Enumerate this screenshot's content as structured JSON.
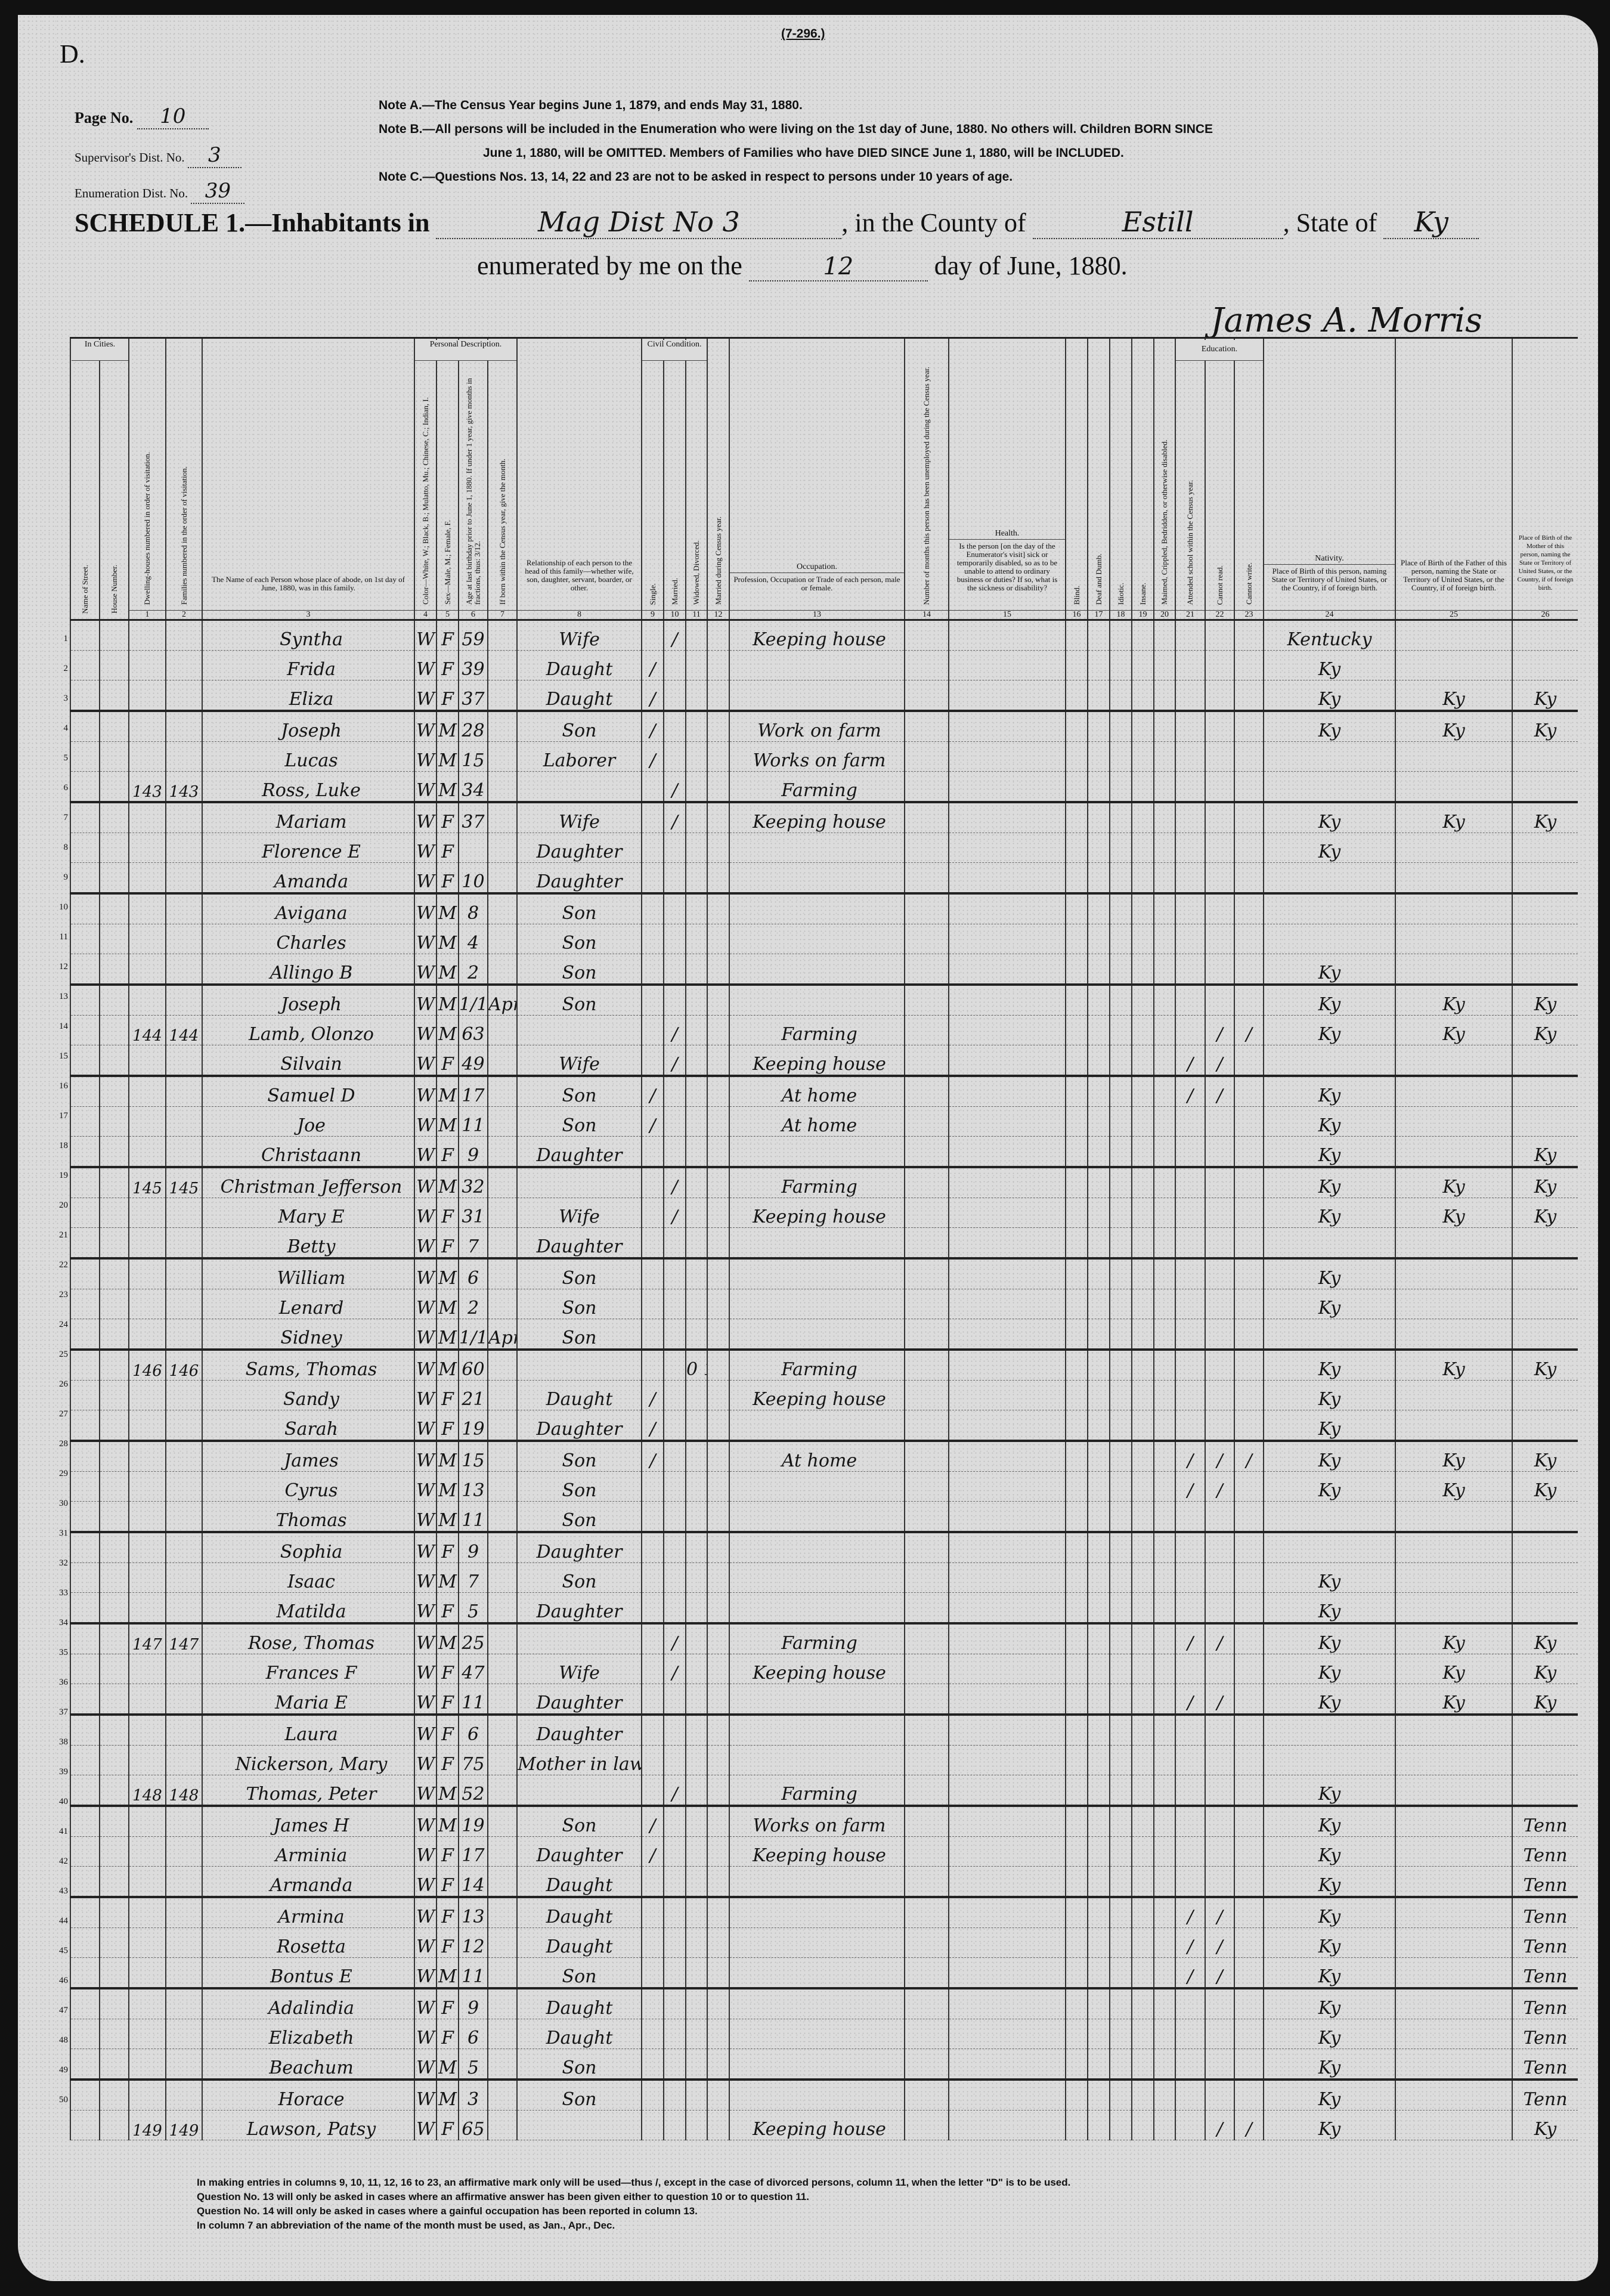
{
  "form": {
    "letter": "D.",
    "form_number": "(7-296.)",
    "page_no_label": "Page No.",
    "page_no": "10",
    "supervisor_label": "Supervisor's Dist. No.",
    "supervisor_no": "3",
    "enumeration_label": "Enumeration Dist. No.",
    "enumeration_no": "39",
    "note_a": "Note A.—The Census Year begins June 1, 1879, and ends May 31, 1880.",
    "note_b1": "Note B.—All persons will be included in the Enumeration who were living on the 1st day of June, 1880. No others will. Children BORN SINCE",
    "note_b2": "June 1, 1880, will be OMITTED. Members of Families who have DIED SINCE June 1, 1880, will be INCLUDED.",
    "note_c": "Note C.—Questions Nos. 13, 14, 22 and 23 are not to be asked in respect to persons under 10 years of age.",
    "schedule_label": "SCHEDULE 1.—Inhabitants in",
    "inhabitants_in": "Mag Dist No 3",
    "county_label": ", in the County of",
    "county": "Estill",
    "state_label": ", State of",
    "state": "Ky",
    "enumerated_label": "enumerated by me on the",
    "day": "12",
    "day_label": "day of June, 1880.",
    "enumerator": "James A. Morris"
  },
  "columns": {
    "in_cities": "In Cities.",
    "street": "Name of Street.",
    "house": "House Number.",
    "c1": "Dwelling-houses numbered in order of visitation.",
    "c2": "Families numbered in the order of visitation.",
    "c3": "The Name of each Person whose place of abode, on 1st day of June, 1880, was in this family.",
    "personal": "Personal Description.",
    "c4": "Color—White, W.; Black, B.; Mulatto, Mu.; Chinese, C.; Indian, I.",
    "c5": "Sex—Male, M.; Female, F.",
    "c6": "Age at last birthday prior to June 1, 1880. If under 1 year, give months in fractions, thus: 3/12.",
    "c7": "If born within the Census year, give the month.",
    "c8": "Relationship of each person to the head of this family—whether wife, son, daughter, servant, boarder, or other.",
    "civil": "Civil Condition.",
    "c9": "Single.",
    "c10": "Married.",
    "c11": "Widowed, Divorced.",
    "c12": "Married during Census year.",
    "occupation": "Occupation.",
    "c13": "Profession, Occupation or Trade of each person, male or female.",
    "c14": "Number of months this person has been unemployed during the Census year.",
    "health": "Health.",
    "c15": "Is the person [on the day of the Enumerator's visit] sick or temporarily disabled, so as to be unable to attend to ordinary business or duties? If so, what is the sickness or disability?",
    "c16": "Blind.",
    "c17": "Deaf and Dumb.",
    "c18": "Idiotic.",
    "c19": "Insane.",
    "c20": "Maimed, Crippled, Bedridden, or otherwise disabled.",
    "education": "Education.",
    "c21": "Attended school within the Census year.",
    "c22": "Cannot read.",
    "c23": "Cannot write.",
    "nativity": "Nativity.",
    "c24": "Place of Birth of this person, naming State or Territory of United States, or the Country, if of foreign birth.",
    "c25": "Place of Birth of the Father of this person, naming the State or Territory of United States, or the Country, if of foreign birth.",
    "c26": "Place of Birth of the Mother of this person, naming the State or Territory of United States, or the Country, if of foreign birth."
  },
  "rows": [
    {
      "name": "Syntha",
      "color": "W",
      "sex": "F",
      "age": "59",
      "relation": "Wife",
      "married": "/",
      "occupation": "Keeping house",
      "birthplace": "Kentucky"
    },
    {
      "name": "Frida",
      "color": "W",
      "sex": "F",
      "age": "39",
      "relation": "Daught",
      "single": "/",
      "birthplace": "Ky"
    },
    {
      "name": "Eliza",
      "color": "W",
      "sex": "F",
      "age": "37",
      "relation": "Daught",
      "single": "/",
      "birthplace": "Ky",
      "father_birthplace": "Ky",
      "mother_birthplace": "Ky"
    },
    {
      "name": "Joseph",
      "color": "W",
      "sex": "M",
      "age": "28",
      "relation": "Son",
      "single": "/",
      "occupation": "Work on farm",
      "birthplace": "Ky",
      "father_birthplace": "Ky",
      "mother_birthplace": "Ky"
    },
    {
      "name": "Lucas",
      "color": "W",
      "sex": "M",
      "age": "15",
      "relation": "Laborer",
      "single": "/",
      "occupation": "Works on farm"
    },
    {
      "dwelling": "143",
      "family": "143",
      "name": "Ross, Luke",
      "color": "W",
      "sex": "M",
      "age": "34",
      "married": "/",
      "occupation": "Farming"
    },
    {
      "name": "Mariam",
      "color": "W",
      "sex": "F",
      "age": "37",
      "relation": "Wife",
      "married": "/",
      "occupation": "Keeping house",
      "birthplace": "Ky",
      "father_birthplace": "Ky",
      "mother_birthplace": "Ky"
    },
    {
      "name": "Florence E",
      "color": "W",
      "sex": "F",
      "relation": "Daughter",
      "birthplace": "Ky"
    },
    {
      "name": "Amanda",
      "color": "W",
      "sex": "F",
      "age": "10",
      "relation": "Daughter"
    },
    {
      "name": "Avigana",
      "color": "W",
      "sex": "M",
      "age": "8",
      "month": "",
      "relation": "Son"
    },
    {
      "name": "Charles",
      "color": "W",
      "sex": "M",
      "age": "4",
      "relation": "Son"
    },
    {
      "name": "Allingo B",
      "color": "W",
      "sex": "M",
      "age": "2",
      "relation": "Son",
      "birthplace": "Ky"
    },
    {
      "name": "Joseph",
      "color": "W",
      "sex": "M",
      "age": "1/12",
      "month": "Apr",
      "relation": "Son",
      "birthplace": "Ky",
      "father_birthplace": "Ky",
      "mother_birthplace": "Ky"
    },
    {
      "dwelling": "144",
      "family": "144",
      "name": "Lamb, Olonzo",
      "color": "W",
      "sex": "M",
      "age": "63",
      "married": "/",
      "occupation": "Farming",
      "cannot_read": "/",
      "cannot_write": "/",
      "birthplace": "Ky",
      "father_birthplace": "Ky",
      "mother_birthplace": "Ky"
    },
    {
      "name": "Silvain",
      "color": "W",
      "sex": "F",
      "age": "49",
      "relation": "Wife",
      "married": "/",
      "occupation": "Keeping house",
      "school": "/",
      "cannot_read": "/"
    },
    {
      "name": "Samuel D",
      "color": "W",
      "sex": "M",
      "age": "17",
      "relation": "Son",
      "single": "/",
      "occupation": "At home",
      "school": "/",
      "cannot_read": "/",
      "birthplace": "Ky"
    },
    {
      "name": "Joe",
      "color": "W",
      "sex": "M",
      "age": "11",
      "relation": "Son",
      "single": "/",
      "occupation": "At home",
      "birthplace": "Ky"
    },
    {
      "name": "Christaann",
      "color": "W",
      "sex": "F",
      "age": "9",
      "relation": "Daughter",
      "birthplace": "Ky",
      "mother_birthplace": "Ky"
    },
    {
      "dwelling": "145",
      "family": "145",
      "name": "Christman Jefferson",
      "color": "W",
      "sex": "M",
      "age": "32",
      "married": "/",
      "occupation": "Farming",
      "birthplace": "Ky",
      "father_birthplace": "Ky",
      "mother_birthplace": "Ky"
    },
    {
      "name": "Mary E",
      "color": "W",
      "sex": "F",
      "age": "31",
      "relation": "Wife",
      "married": "/",
      "occupation": "Keeping house",
      "birthplace": "Ky",
      "father_birthplace": "Ky",
      "mother_birthplace": "Ky"
    },
    {
      "name": "Betty",
      "color": "W",
      "sex": "F",
      "age": "7",
      "relation": "Daughter"
    },
    {
      "name": "William",
      "color": "W",
      "sex": "M",
      "age": "6",
      "relation": "Son",
      "birthplace": "Ky"
    },
    {
      "name": "Lenard",
      "color": "W",
      "sex": "M",
      "age": "2",
      "relation": "Son",
      "birthplace": "Ky"
    },
    {
      "name": "Sidney",
      "color": "W",
      "sex": "M",
      "age": "1/12",
      "month": "Apr",
      "relation": "Son"
    },
    {
      "dwelling": "146",
      "family": "146",
      "name": "Sams, Thomas",
      "color": "W",
      "sex": "M",
      "age": "60",
      "widowed": "0 1",
      "occupation": "Farming",
      "birthplace": "Ky",
      "father_birthplace": "Ky",
      "mother_birthplace": "Ky"
    },
    {
      "name": "Sandy",
      "color": "W",
      "sex": "F",
      "age": "21",
      "relation": "Daught",
      "single": "/",
      "occupation": "Keeping house",
      "birthplace": "Ky"
    },
    {
      "name": "Sarah",
      "color": "W",
      "sex": "F",
      "age": "19",
      "relation": "Daughter",
      "single": "/",
      "birthplace": "Ky"
    },
    {
      "name": "James",
      "color": "W",
      "sex": "M",
      "age": "15",
      "relation": "Son",
      "single": "/",
      "occupation": "At home",
      "school": "/",
      "cannot_read": "/",
      "cannot_write": "/",
      "birthplace": "Ky",
      "father_birthplace": "Ky",
      "mother_birthplace": "Ky"
    },
    {
      "name": "Cyrus",
      "color": "W",
      "sex": "M",
      "age": "13",
      "relation": "Son",
      "school": "/",
      "cannot_read": "/",
      "birthplace": "Ky",
      "father_birthplace": "Ky",
      "mother_birthplace": "Ky"
    },
    {
      "name": "Thomas",
      "color": "W",
      "sex": "M",
      "age": "11",
      "relation": "Son"
    },
    {
      "name": "Sophia",
      "color": "W",
      "sex": "F",
      "age": "9",
      "relation": "Daughter"
    },
    {
      "name": "Isaac",
      "color": "W",
      "sex": "M",
      "age": "7",
      "relation": "Son",
      "birthplace": "Ky"
    },
    {
      "name": "Matilda",
      "color": "W",
      "sex": "F",
      "age": "5",
      "relation": "Daughter",
      "birthplace": "Ky"
    },
    {
      "dwelling": "147",
      "family": "147",
      "name": "Rose, Thomas",
      "color": "W",
      "sex": "M",
      "age": "25",
      "married": "/",
      "occupation": "Farming",
      "school": "/",
      "cannot_read": "/",
      "birthplace": "Ky",
      "father_birthplace": "Ky",
      "mother_birthplace": "Ky"
    },
    {
      "name": "Frances F",
      "color": "W",
      "sex": "F",
      "age": "47",
      "relation": "Wife",
      "married": "/",
      "occupation": "Keeping house",
      "birthplace": "Ky",
      "father_birthplace": "Ky",
      "mother_birthplace": "Ky"
    },
    {
      "name": "Maria E",
      "color": "W",
      "sex": "F",
      "age": "11",
      "relation": "Daughter",
      "school": "/",
      "cannot_read": "/",
      "birthplace": "Ky",
      "father_birthplace": "Ky",
      "mother_birthplace": "Ky"
    },
    {
      "name": "Laura",
      "color": "W",
      "sex": "F",
      "age": "6",
      "relation": "Daughter"
    },
    {
      "name": "Nickerson, Mary",
      "color": "W",
      "sex": "F",
      "age": "75",
      "relation": "Mother in law"
    },
    {
      "dwelling": "148",
      "family": "148",
      "name": "Thomas, Peter",
      "color": "W",
      "sex": "M",
      "age": "52",
      "married": "/",
      "occupation": "Farming",
      "birthplace": "Ky"
    },
    {
      "name": "James H",
      "color": "W",
      "sex": "M",
      "age": "19",
      "relation": "Son",
      "single": "/",
      "occupation": "Works on farm",
      "birthplace": "Ky",
      "mother_birthplace": "Tenn"
    },
    {
      "name": "Arminia",
      "color": "W",
      "sex": "F",
      "age": "17",
      "relation": "Daughter",
      "single": "/",
      "occupation": "Keeping house",
      "birthplace": "Ky",
      "mother_birthplace": "Tenn"
    },
    {
      "name": "Armanda",
      "color": "W",
      "sex": "F",
      "age": "14",
      "relation": "Daught",
      "birthplace": "Ky",
      "mother_birthplace": "Tenn"
    },
    {
      "name": "Armina",
      "color": "W",
      "sex": "F",
      "age": "13",
      "relation": "Daught",
      "school": "/",
      "cannot_read": "/",
      "birthplace": "Ky",
      "mother_birthplace": "Tenn"
    },
    {
      "name": "Rosetta",
      "color": "W",
      "sex": "F",
      "age": "12",
      "relation": "Daught",
      "school": "/",
      "cannot_read": "/",
      "birthplace": "Ky",
      "mother_birthplace": "Tenn"
    },
    {
      "name": "Bontus E",
      "color": "W",
      "sex": "M",
      "age": "11",
      "relation": "Son",
      "school": "/",
      "cannot_read": "/",
      "birthplace": "Ky",
      "mother_birthplace": "Tenn"
    },
    {
      "name": "Adalindia",
      "color": "W",
      "sex": "F",
      "age": "9",
      "relation": "Daught",
      "birthplace": "Ky",
      "mother_birthplace": "Tenn"
    },
    {
      "name": "Elizabeth",
      "color": "W",
      "sex": "F",
      "age": "6",
      "relation": "Daught",
      "birthplace": "Ky",
      "mother_birthplace": "Tenn"
    },
    {
      "name": "Beachum",
      "color": "W",
      "sex": "M",
      "age": "5",
      "relation": "Son",
      "birthplace": "Ky",
      "mother_birthplace": "Tenn"
    },
    {
      "name": "Horace",
      "color": "W",
      "sex": "M",
      "age": "3",
      "relation": "Son",
      "birthplace": "Ky",
      "mother_birthplace": "Tenn"
    },
    {
      "dwelling": "149",
      "family": "149",
      "name": "Lawson, Patsy",
      "color": "W",
      "sex": "F",
      "age": "65",
      "occupation": "Keeping house",
      "cannot_read": "/",
      "cannot_write": "/",
      "birthplace": "Ky",
      "mother_birthplace": "Ky"
    }
  ],
  "footer_notes": [
    "In making entries in columns 9, 10, 11, 12, 16 to 23, an affirmative mark only will be used—thus /, except in the case of divorced persons, column 11, when the letter \"D\" is to be used.",
    "Question No. 13 will only be asked in cases where an affirmative answer has been given either to question 10 or to question 11.",
    "Question No. 14 will only be asked in cases where a gainful occupation has been reported in column 13.",
    "In column 7 an abbreviation of the name of the month must be used, as Jan., Apr., Dec."
  ]
}
